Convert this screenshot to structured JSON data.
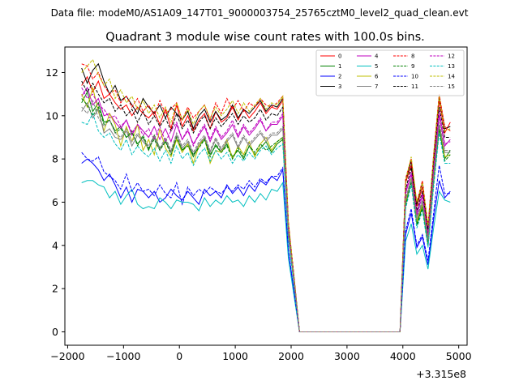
{
  "suptitle": "Data file: modeM0/AS1A09_147T01_9000003754_25765cztM0_level2_quad_clean.evt",
  "chart_data": {
    "type": "line",
    "title": "Quadrant 3 module wise count rates with 100.0s bins.",
    "xlabel": "",
    "ylabel": "",
    "x_offset_label": "+3.315e8",
    "xlim": [
      -2050,
      5150
    ],
    "ylim": [
      -0.62,
      13.18
    ],
    "xticks": [
      -2000,
      -1000,
      0,
      1000,
      2000,
      3000,
      4000,
      5000
    ],
    "xtick_labels": [
      "−2000",
      "−1000",
      "0",
      "1000",
      "2000",
      "3000",
      "4000",
      "5000"
    ],
    "yticks": [
      0,
      2,
      4,
      6,
      8,
      10,
      12
    ],
    "grid": false,
    "legend_position": "top-right",
    "legend_columns": 4,
    "x": [
      -1750,
      -1650,
      -1550,
      -1450,
      -1350,
      -1250,
      -1150,
      -1050,
      -950,
      -850,
      -750,
      -650,
      -550,
      -450,
      -350,
      -250,
      -150,
      -50,
      50,
      150,
      250,
      350,
      450,
      550,
      650,
      750,
      850,
      950,
      1050,
      1150,
      1250,
      1350,
      1450,
      1550,
      1650,
      1750,
      1850,
      1950,
      2050,
      2150,
      2250,
      2350,
      2450,
      2550,
      2650,
      2750,
      2850,
      2950,
      3050,
      3150,
      3250,
      3350,
      3450,
      3550,
      3650,
      3750,
      3850,
      3950,
      4050,
      4150,
      4250,
      4350,
      4450,
      4550,
      4650,
      4750,
      4850
    ],
    "series": [
      {
        "name": "0",
        "color": "#ff0000",
        "dash": "solid",
        "values": [
          11.4,
          11.8,
          11.1,
          11.6,
          10.8,
          11.0,
          10.6,
          10.3,
          10.5,
          10.0,
          10.4,
          10.1,
          9.9,
          10.2,
          9.6,
          10.3,
          9.4,
          10.5,
          9.5,
          10.0,
          9.3,
          9.8,
          10.1,
          9.4,
          10.2,
          9.7,
          9.9,
          10.4,
          9.8,
          10.3,
          9.9,
          10.2,
          10.6,
          10.1,
          10.4,
          10.3,
          10.7,
          5.0,
          2.6,
          0,
          0,
          0,
          0,
          0,
          0,
          0,
          0,
          0,
          0,
          0,
          0,
          0,
          0,
          0,
          0,
          0,
          0,
          0,
          6.9,
          7.7,
          5.8,
          6.7,
          4.7,
          7.9,
          10.7,
          9.2,
          9.7
        ]
      },
      {
        "name": "1",
        "color": "#008000",
        "dash": "solid",
        "values": [
          10.6,
          11.1,
          10.2,
          10.6,
          9.7,
          9.8,
          9.3,
          9.5,
          9.0,
          9.2,
          8.7,
          9.0,
          8.4,
          9.1,
          8.5,
          8.8,
          8.3,
          8.9,
          8.4,
          8.7,
          8.1,
          8.6,
          8.9,
          8.2,
          8.6,
          8.3,
          8.7,
          8.1,
          8.4,
          8.0,
          8.6,
          8.2,
          8.5,
          8.8,
          8.3,
          8.7,
          8.9,
          4.4,
          2.3,
          0,
          0,
          0,
          0,
          0,
          0,
          0,
          0,
          0,
          0,
          0,
          0,
          0,
          0,
          0,
          0,
          0,
          0,
          0,
          5.9,
          7.0,
          5.0,
          5.8,
          4.0,
          6.9,
          9.4,
          8.0,
          8.4
        ]
      },
      {
        "name": "2",
        "color": "#0000ff",
        "dash": "solid",
        "values": [
          7.8,
          8.0,
          7.8,
          7.5,
          7.0,
          7.3,
          6.8,
          6.2,
          6.7,
          6.0,
          6.6,
          6.5,
          6.2,
          6.5,
          6.0,
          6.2,
          6.6,
          6.3,
          6.1,
          6.5,
          6.2,
          5.9,
          6.6,
          6.3,
          6.5,
          6.2,
          6.8,
          6.4,
          6.7,
          6.3,
          6.8,
          6.5,
          7.0,
          6.8,
          7.2,
          7.0,
          7.5,
          3.7,
          1.9,
          0,
          0,
          0,
          0,
          0,
          0,
          0,
          0,
          0,
          0,
          0,
          0,
          0,
          0,
          0,
          0,
          0,
          0,
          0,
          4.5,
          5.5,
          3.9,
          4.4,
          3.1,
          5.2,
          7.0,
          6.2,
          6.5
        ]
      },
      {
        "name": "3",
        "color": "#000000",
        "dash": "solid",
        "values": [
          12.2,
          11.5,
          12.1,
          12.4,
          11.6,
          11.0,
          11.4,
          10.7,
          10.9,
          10.5,
          10.1,
          10.8,
          10.4,
          10.1,
          10.5,
          9.9,
          10.4,
          10.1,
          9.8,
          10.2,
          9.4,
          10.0,
          10.3,
          9.7,
          10.2,
          9.8,
          10.0,
          10.5,
          9.9,
          10.3,
          10.1,
          10.4,
          10.7,
          10.2,
          10.5,
          10.4,
          10.8,
          5.0,
          2.6,
          0,
          0,
          0,
          0,
          0,
          0,
          0,
          0,
          0,
          0,
          0,
          0,
          0,
          0,
          0,
          0,
          0,
          0,
          0,
          7.0,
          7.9,
          5.9,
          6.9,
          4.8,
          8.1,
          10.9,
          9.4,
          9.5
        ]
      },
      {
        "name": "4",
        "color": "#bf00bf",
        "dash": "solid",
        "values": [
          10.9,
          11.3,
          10.5,
          10.8,
          10.0,
          10.1,
          9.7,
          9.4,
          9.8,
          9.1,
          9.6,
          9.3,
          9.0,
          9.5,
          8.9,
          9.4,
          8.8,
          9.6,
          8.9,
          9.3,
          8.7,
          9.1,
          9.5,
          8.8,
          9.4,
          8.9,
          9.2,
          9.6,
          9.0,
          9.5,
          9.1,
          9.4,
          9.8,
          9.3,
          9.6,
          9.6,
          10.0,
          4.7,
          2.5,
          0,
          0,
          0,
          0,
          0,
          0,
          0,
          0,
          0,
          0,
          0,
          0,
          0,
          0,
          0,
          0,
          0,
          0,
          0,
          6.4,
          7.3,
          5.4,
          6.3,
          4.4,
          7.4,
          10.0,
          8.6,
          8.9
        ]
      },
      {
        "name": "5",
        "color": "#00bfbf",
        "dash": "solid",
        "values": [
          6.9,
          7.0,
          7.0,
          6.8,
          6.7,
          6.2,
          6.5,
          5.9,
          6.3,
          6.6,
          5.9,
          5.7,
          5.8,
          5.7,
          6.2,
          6.0,
          5.7,
          6.1,
          6.0,
          6.0,
          5.9,
          5.6,
          6.2,
          5.8,
          6.1,
          5.9,
          6.3,
          6.0,
          6.1,
          5.8,
          6.3,
          6.0,
          6.4,
          6.1,
          6.6,
          6.5,
          6.9,
          3.4,
          1.7,
          0,
          0,
          0,
          0,
          0,
          0,
          0,
          0,
          0,
          0,
          0,
          0,
          0,
          0,
          0,
          0,
          0,
          0,
          0,
          4.2,
          5.0,
          3.6,
          4.0,
          2.9,
          4.8,
          6.5,
          6.1,
          6.0
        ]
      },
      {
        "name": "6",
        "color": "#bfbf00",
        "dash": "solid",
        "values": [
          11.0,
          10.4,
          11.3,
          10.2,
          9.3,
          10.1,
          9.6,
          8.6,
          9.5,
          8.8,
          9.6,
          8.4,
          8.9,
          8.2,
          9.4,
          8.5,
          8.1,
          8.9,
          8.3,
          8.7,
          7.8,
          8.6,
          9.0,
          7.8,
          8.4,
          8.3,
          8.9,
          8.0,
          8.6,
          8.2,
          8.8,
          8.1,
          8.7,
          9.0,
          8.4,
          8.8,
          9.0,
          4.5,
          2.3,
          0,
          0,
          0,
          0,
          0,
          0,
          0,
          0,
          0,
          0,
          0,
          0,
          0,
          0,
          0,
          0,
          0,
          0,
          0,
          6.0,
          7.1,
          5.1,
          5.9,
          4.1,
          7.0,
          9.6,
          8.1,
          8.2
        ]
      },
      {
        "name": "7",
        "color": "#808080",
        "dash": "solid",
        "values": [
          10.2,
          10.6,
          9.9,
          10.3,
          9.2,
          9.4,
          9.0,
          8.9,
          9.3,
          8.6,
          9.1,
          8.8,
          8.5,
          9.0,
          8.4,
          8.9,
          8.3,
          9.1,
          8.5,
          8.8,
          8.2,
          8.7,
          9.0,
          8.3,
          8.9,
          8.4,
          8.8,
          9.1,
          8.5,
          9.0,
          8.6,
          8.9,
          9.2,
          8.8,
          9.1,
          9.1,
          9.4,
          4.6,
          2.4,
          0,
          0,
          0,
          0,
          0,
          0,
          0,
          0,
          0,
          0,
          0,
          0,
          0,
          0,
          0,
          0,
          0,
          0,
          0,
          6.1,
          7.0,
          5.2,
          6.0,
          4.2,
          7.1,
          9.6,
          8.3,
          8.3
        ]
      },
      {
        "name": "8",
        "color": "#ff0000",
        "dash": "dashed",
        "values": [
          12.4,
          12.3,
          11.7,
          12.0,
          11.4,
          11.0,
          11.2,
          10.6,
          10.9,
          10.4,
          10.8,
          10.2,
          10.5,
          10.0,
          10.7,
          10.1,
          10.3,
          10.6,
          9.8,
          10.4,
          9.9,
          10.2,
          10.5,
          9.8,
          10.6,
          10.1,
          10.8,
          10.3,
          10.7,
          10.2,
          10.6,
          10.4,
          10.8,
          10.5,
          10.4,
          10.6,
          10.9,
          5.1,
          2.6,
          0,
          0,
          0,
          0,
          0,
          0,
          0,
          0,
          0,
          0,
          0,
          0,
          0,
          0,
          0,
          0,
          0,
          0,
          0,
          7.1,
          8.0,
          6.0,
          7.0,
          4.9,
          8.2,
          11.0,
          9.5,
          9.3
        ]
      },
      {
        "name": "9",
        "color": "#008000",
        "dash": "dashed",
        "values": [
          10.8,
          10.5,
          10.0,
          10.4,
          9.6,
          9.8,
          9.2,
          9.4,
          9.0,
          9.3,
          8.6,
          9.1,
          8.5,
          8.9,
          8.4,
          8.8,
          8.2,
          9.0,
          8.4,
          8.6,
          8.2,
          8.5,
          8.9,
          8.1,
          8.7,
          8.3,
          8.6,
          8.0,
          8.5,
          8.1,
          8.6,
          8.3,
          8.7,
          8.4,
          8.6,
          8.8,
          9.0,
          4.4,
          2.3,
          0,
          0,
          0,
          0,
          0,
          0,
          0,
          0,
          0,
          0,
          0,
          0,
          0,
          0,
          0,
          0,
          0,
          0,
          0,
          5.8,
          6.9,
          4.9,
          5.7,
          4.0,
          6.8,
          9.3,
          7.9,
          8.2
        ]
      },
      {
        "name": "10",
        "color": "#0000ff",
        "dash": "dashed",
        "values": [
          8.3,
          8.0,
          7.9,
          8.1,
          7.4,
          7.2,
          7.0,
          6.6,
          7.3,
          6.5,
          6.9,
          6.5,
          6.6,
          6.3,
          6.8,
          6.4,
          6.2,
          6.9,
          5.9,
          6.7,
          6.3,
          6.6,
          6.4,
          6.7,
          6.5,
          6.4,
          6.7,
          6.5,
          6.8,
          6.6,
          7.0,
          6.7,
          7.1,
          6.9,
          7.2,
          7.2,
          7.6,
          3.8,
          1.9,
          0,
          0,
          0,
          0,
          0,
          0,
          0,
          0,
          0,
          0,
          0,
          0,
          0,
          0,
          0,
          0,
          0,
          0,
          0,
          4.7,
          5.7,
          4.0,
          4.5,
          3.3,
          5.5,
          7.7,
          6.4,
          6.4
        ]
      },
      {
        "name": "11",
        "color": "#000000",
        "dash": "dashed",
        "values": [
          11.6,
          11.1,
          11.5,
          11.0,
          10.6,
          10.8,
          10.2,
          10.5,
          10.0,
          10.3,
          9.7,
          10.2,
          9.6,
          10.0,
          9.5,
          9.9,
          9.3,
          10.1,
          9.4,
          9.8,
          9.2,
          9.7,
          10.0,
          9.4,
          9.9,
          9.5,
          9.8,
          10.1,
          9.6,
          10.0,
          9.7,
          9.9,
          10.3,
          9.8,
          10.1,
          10.0,
          10.4,
          4.9,
          2.5,
          0,
          0,
          0,
          0,
          0,
          0,
          0,
          0,
          0,
          0,
          0,
          0,
          0,
          0,
          0,
          0,
          0,
          0,
          0,
          6.6,
          7.6,
          5.6,
          6.5,
          4.6,
          7.8,
          10.4,
          9.0,
          9.0
        ]
      },
      {
        "name": "12",
        "color": "#bf00bf",
        "dash": "dashed",
        "values": [
          11.3,
          10.8,
          11.0,
          10.5,
          10.3,
          9.9,
          10.0,
          9.5,
          9.8,
          9.2,
          9.6,
          9.1,
          9.4,
          8.9,
          9.5,
          8.8,
          9.3,
          9.7,
          8.9,
          9.4,
          8.6,
          9.2,
          9.6,
          8.9,
          9.5,
          9.0,
          9.3,
          9.8,
          9.1,
          9.6,
          9.2,
          9.5,
          9.9,
          9.3,
          9.7,
          9.7,
          10.1,
          4.8,
          2.5,
          0,
          0,
          0,
          0,
          0,
          0,
          0,
          0,
          0,
          0,
          0,
          0,
          0,
          0,
          0,
          0,
          0,
          0,
          0,
          6.5,
          7.4,
          5.5,
          6.4,
          4.5,
          7.5,
          10.2,
          8.7,
          8.8
        ]
      },
      {
        "name": "13",
        "color": "#00bfbf",
        "dash": "dashed",
        "values": [
          9.7,
          9.6,
          10.1,
          9.3,
          9.0,
          9.2,
          8.7,
          8.4,
          8.9,
          8.2,
          8.6,
          8.3,
          8.1,
          8.5,
          7.9,
          8.4,
          7.8,
          8.6,
          8.0,
          8.3,
          7.7,
          8.2,
          8.5,
          7.9,
          8.4,
          8.0,
          8.3,
          7.8,
          8.2,
          7.9,
          8.3,
          8.0,
          8.4,
          8.6,
          8.2,
          8.5,
          8.7,
          4.3,
          2.2,
          0,
          0,
          0,
          0,
          0,
          0,
          0,
          0,
          0,
          0,
          0,
          0,
          0,
          0,
          0,
          0,
          0,
          0,
          0,
          5.7,
          6.8,
          4.8,
          5.6,
          3.9,
          6.7,
          9.2,
          7.8,
          7.8
        ]
      },
      {
        "name": "14",
        "color": "#bfbf00",
        "dash": "dashed",
        "values": [
          12.0,
          12.3,
          12.6,
          11.9,
          11.4,
          11.7,
          10.8,
          11.2,
          10.6,
          10.9,
          10.3,
          10.7,
          10.1,
          10.5,
          9.9,
          10.4,
          9.7,
          10.6,
          9.8,
          10.3,
          9.6,
          10.2,
          10.5,
          9.9,
          10.4,
          10.0,
          10.3,
          10.7,
          10.1,
          10.6,
          10.2,
          10.5,
          10.8,
          10.3,
          10.6,
          10.5,
          10.9,
          5.1,
          2.6,
          0,
          0,
          0,
          0,
          0,
          0,
          0,
          0,
          0,
          0,
          0,
          0,
          0,
          0,
          0,
          0,
          0,
          0,
          0,
          7.0,
          8.1,
          6.0,
          6.9,
          4.9,
          8.1,
          10.9,
          9.3,
          9.4
        ]
      },
      {
        "name": "15",
        "color": "#808080",
        "dash": "dashed",
        "values": [
          10.4,
          10.1,
          10.7,
          9.9,
          9.5,
          9.8,
          9.2,
          9.0,
          9.4,
          8.8,
          9.2,
          8.9,
          8.6,
          9.1,
          8.5,
          9.0,
          8.4,
          9.2,
          8.6,
          8.9,
          8.3,
          8.8,
          9.1,
          8.4,
          9.0,
          8.5,
          8.9,
          9.2,
          8.6,
          9.1,
          8.7,
          9.0,
          9.3,
          8.9,
          9.2,
          9.2,
          9.5,
          4.6,
          2.4,
          0,
          0,
          0,
          0,
          0,
          0,
          0,
          0,
          0,
          0,
          0,
          0,
          0,
          0,
          0,
          0,
          0,
          0,
          0,
          6.2,
          7.1,
          5.3,
          6.1,
          4.3,
          7.2,
          9.7,
          8.4,
          8.4
        ]
      }
    ]
  }
}
